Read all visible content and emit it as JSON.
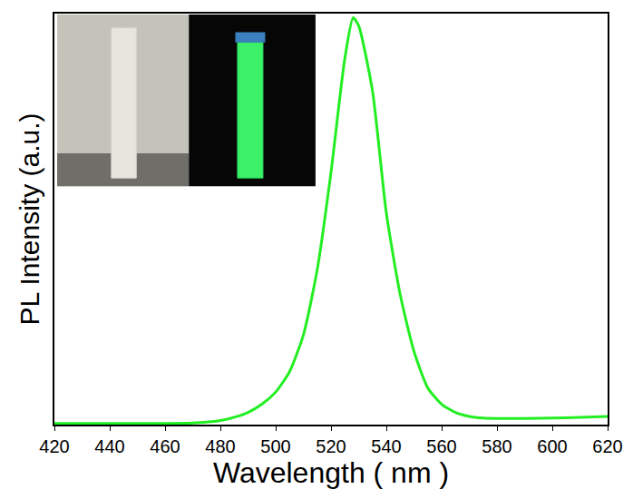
{
  "chart_data": {
    "type": "line",
    "x_label": "Wavelength ( nm )",
    "y_label": "PL Intensity (a.u.)",
    "x": [
      420,
      430,
      440,
      450,
      460,
      470,
      475,
      480,
      485,
      490,
      495,
      500,
      505,
      510,
      515,
      520,
      525,
      528,
      530,
      535,
      540,
      545,
      550,
      555,
      560,
      565,
      570,
      575,
      580,
      590,
      600,
      610,
      620
    ],
    "values": [
      0.003,
      0.003,
      0.003,
      0.003,
      0.003,
      0.004,
      0.006,
      0.01,
      0.018,
      0.03,
      0.05,
      0.08,
      0.13,
      0.22,
      0.38,
      0.62,
      0.9,
      1.0,
      0.98,
      0.82,
      0.52,
      0.32,
      0.18,
      0.09,
      0.05,
      0.03,
      0.02,
      0.016,
      0.015,
      0.015,
      0.016,
      0.018,
      0.02
    ],
    "color": "#22ee22",
    "xlim": [
      420,
      620
    ],
    "xticks": [
      420,
      440,
      460,
      480,
      500,
      520,
      540,
      560,
      580,
      600,
      620
    ],
    "ylim": [
      0,
      1.01
    ],
    "tick_labels": "x",
    "grid": false
  }
}
